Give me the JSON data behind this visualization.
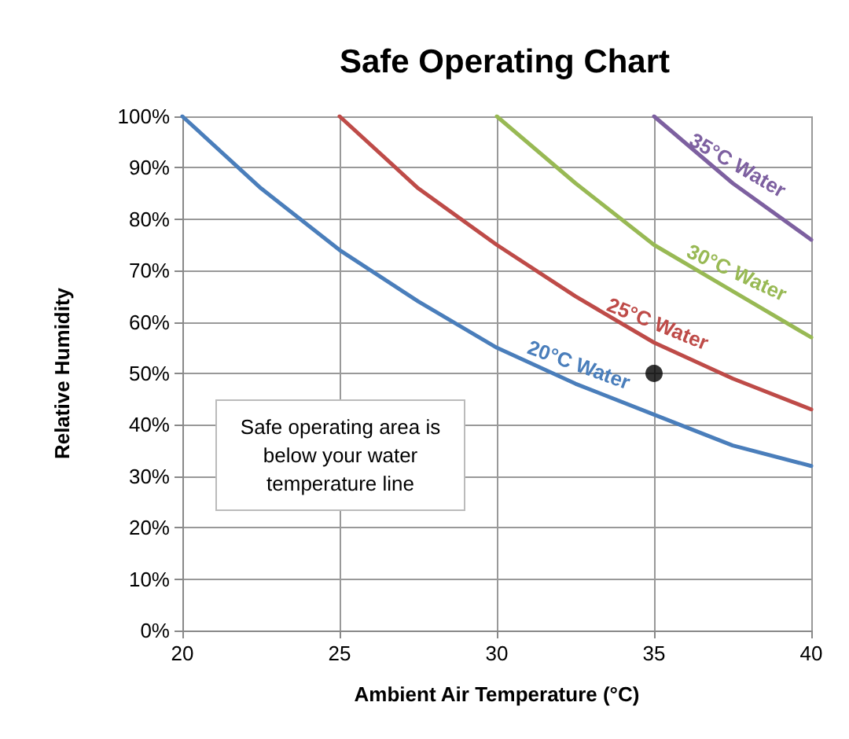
{
  "chart_data": {
    "type": "line",
    "title": "Safe Operating Chart",
    "xlabel": "Ambient Air Temperature (°C)",
    "ylabel": "Relative Humidity",
    "annotations": [
      "Safe operating area is below your water temperature line"
    ],
    "xlim": [
      20,
      40
    ],
    "xticks": [
      20,
      25,
      30,
      35,
      40
    ],
    "ylim": [
      0,
      100
    ],
    "yticks": [
      {
        "value": 0,
        "label": "0%"
      },
      {
        "value": 10,
        "label": "10%"
      },
      {
        "value": 20,
        "label": "20%"
      },
      {
        "value": 30,
        "label": "30%"
      },
      {
        "value": 40,
        "label": "40%"
      },
      {
        "value": 50,
        "label": "50%"
      },
      {
        "value": 60,
        "label": "60%"
      },
      {
        "value": 70,
        "label": "70%"
      },
      {
        "value": 80,
        "label": "80%"
      },
      {
        "value": 90,
        "label": "90%"
      },
      {
        "value": 100,
        "label": "100%"
      }
    ],
    "grid": true,
    "legend": false,
    "marker": "none",
    "line_style": "solid",
    "series": [
      {
        "name": "20°C Water",
        "color": "#4a7ebb",
        "x": [
          20,
          22.5,
          25,
          27.5,
          30,
          32.5,
          35,
          37.5,
          40
        ],
        "values": [
          100,
          86,
          74,
          64,
          55,
          48,
          42,
          36,
          32
        ]
      },
      {
        "name": "25°C Water",
        "color": "#be4b48",
        "x": [
          25,
          27.5,
          30,
          32.5,
          35,
          37.5,
          40
        ],
        "values": [
          100,
          86,
          75,
          65,
          56,
          49,
          43
        ]
      },
      {
        "name": "30°C Water",
        "color": "#98b954",
        "x": [
          30,
          32.5,
          35,
          37.5,
          40
        ],
        "values": [
          100,
          87,
          75,
          66,
          57
        ]
      },
      {
        "name": "35°C Water",
        "color": "#7d60a0",
        "x": [
          35,
          37.5,
          40
        ],
        "values": [
          100,
          87,
          76
        ]
      },
      {
        "type": "scatter",
        "marker": "circle",
        "color": "#000000",
        "x": [
          35
        ],
        "values": [
          50
        ]
      }
    ]
  }
}
